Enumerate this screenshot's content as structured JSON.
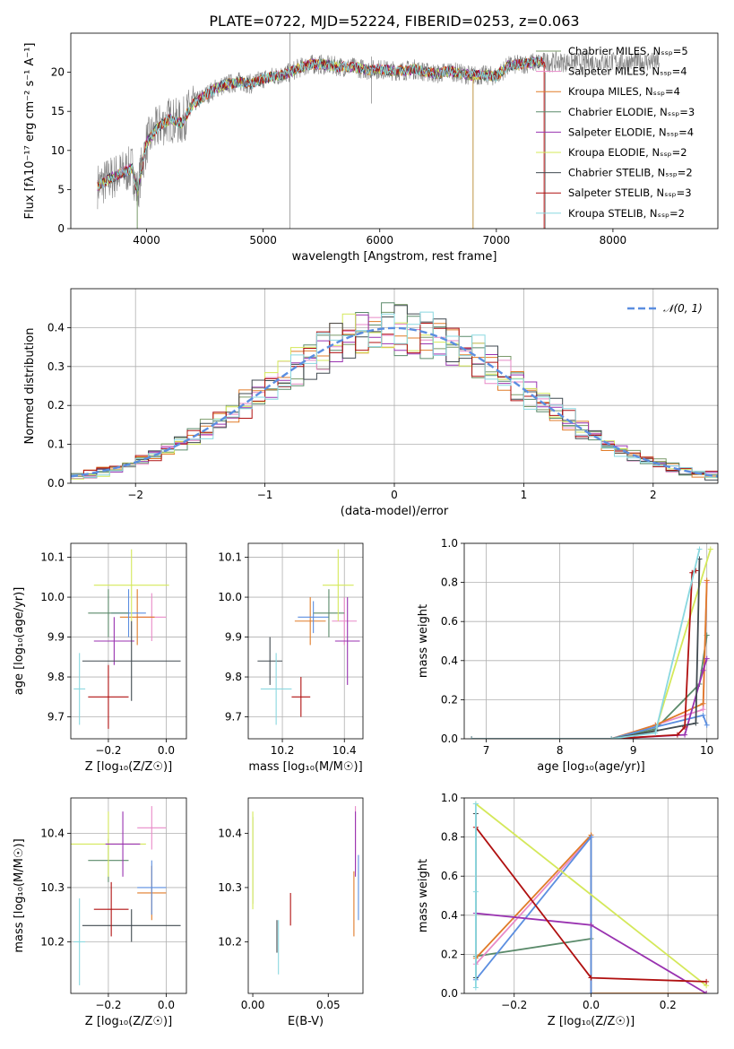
{
  "figure": {
    "title": "PLATE=0722, MJD=52224, FIBERID=0253, z=0.063"
  },
  "chart_data": [
    {
      "id": "spectrum",
      "type": "line",
      "xlabel": "wavelength [Angstrom, rest frame]",
      "ylabel": "Flux [fλ10⁻¹⁷ erg cm⁻² s⁻¹ A⁻¹]",
      "xlim": [
        3350,
        8900
      ],
      "ylim": [
        0,
        25
      ],
      "xticks": [
        4000,
        5000,
        6000,
        7000,
        8000
      ],
      "yticks": [
        0,
        5,
        10,
        15,
        20
      ],
      "grid": false,
      "legend_position": "top-right",
      "continuum": [
        [
          3580,
          5.5
        ],
        [
          3700,
          6.5
        ],
        [
          3800,
          7.2
        ],
        [
          3880,
          7.8
        ],
        [
          3920,
          4.5
        ],
        [
          3960,
          8
        ],
        [
          4000,
          11
        ],
        [
          4100,
          13
        ],
        [
          4200,
          14
        ],
        [
          4300,
          13.5
        ],
        [
          4400,
          16
        ],
        [
          4500,
          17
        ],
        [
          4600,
          18
        ],
        [
          4700,
          18.5
        ],
        [
          4800,
          18.8
        ],
        [
          4900,
          18.5
        ],
        [
          5000,
          19.2
        ],
        [
          5100,
          19.5
        ],
        [
          5200,
          19.8
        ],
        [
          5300,
          20.5
        ],
        [
          5400,
          21
        ],
        [
          5500,
          21
        ],
        [
          5600,
          20.8
        ],
        [
          5700,
          20.7
        ],
        [
          5800,
          20.6
        ],
        [
          5900,
          20.3
        ],
        [
          6000,
          20.4
        ],
        [
          6100,
          20.2
        ],
        [
          6200,
          20.2
        ],
        [
          6300,
          20.4
        ],
        [
          6400,
          20
        ],
        [
          6500,
          19.8
        ],
        [
          6600,
          20.2
        ],
        [
          6700,
          19.8
        ],
        [
          6800,
          19.6
        ],
        [
          6900,
          19.6
        ],
        [
          7000,
          19.5
        ],
        [
          7100,
          20.8
        ],
        [
          7200,
          21
        ],
        [
          7300,
          21.2
        ],
        [
          7400,
          21.3
        ]
      ],
      "observed_end": 8400,
      "series": [
        {
          "name": "Chabrier MILES, N_SSP=5",
          "color": "#7a9a6a"
        },
        {
          "name": "Salpeter MILES, N_SSP=4",
          "color": "#e88ac8"
        },
        {
          "name": "Kroupa MILES, N_SSP=4",
          "color": "#e07b28"
        },
        {
          "name": "Chabrier ELODIE, N_SSP=3",
          "color": "#5a8a6a"
        },
        {
          "name": "Salpeter ELODIE, N_SSP=4",
          "color": "#9932b0"
        },
        {
          "name": "Kroupa ELODIE, N_SSP=2",
          "color": "#d4e85a"
        },
        {
          "name": "Chabrier STELIB, N_SSP=2",
          "color": "#404a50"
        },
        {
          "name": "Salpeter STELIB, N_SSP=3",
          "color": "#b01010"
        },
        {
          "name": "Kroupa STELIB, N_SSP=2",
          "color": "#8ad8e0"
        }
      ]
    },
    {
      "id": "residuals",
      "type": "line",
      "xlabel": "(data-model)/error",
      "ylabel": "Normed distribution",
      "xlim": [
        -2.5,
        2.5
      ],
      "ylim": [
        0,
        0.5
      ],
      "xticks": [
        -2,
        -1,
        0,
        1,
        2
      ],
      "yticks": [
        0.0,
        0.1,
        0.2,
        0.3,
        0.4
      ],
      "grid": true,
      "legend_position": "top-right",
      "legend": "𝒩(0, 1)",
      "gaussian_color": "#5b8ee0",
      "bin_width": 0.1
    },
    {
      "id": "age-vs-Z",
      "type": "scatter",
      "xlabel": "Z [log₁₀(Z/Z☉)]",
      "ylabel": "age  [log₁₀(age/yr)]",
      "xlim": [
        -0.33,
        0.07
      ],
      "ylim": [
        9.645,
        10.135
      ],
      "xticks": [
        -0.2,
        0.0
      ],
      "yticks": [
        9.7,
        9.8,
        9.9,
        10.0,
        10.1
      ],
      "grid": true,
      "errorbars": [
        {
          "x": -0.05,
          "y": 9.95,
          "xerr": 0.05,
          "yerr": 0.06,
          "color": "#e88ac8"
        },
        {
          "x": -0.1,
          "y": 9.95,
          "xerr": 0.06,
          "yerr": 0.07,
          "color": "#e07b28"
        },
        {
          "x": -0.13,
          "y": 9.96,
          "xerr": 0.06,
          "yerr": 0.06,
          "color": "#5b8ee0"
        },
        {
          "x": -0.2,
          "y": 9.96,
          "xerr": 0.07,
          "yerr": 0.06,
          "color": "#5a8a6a"
        },
        {
          "x": -0.12,
          "y": 10.03,
          "xerr": 0.13,
          "yerr": 0.09,
          "color": "#d4e85a"
        },
        {
          "x": -0.18,
          "y": 9.89,
          "xerr": 0.07,
          "yerr": 0.06,
          "color": "#9932b0"
        },
        {
          "x": -0.12,
          "y": 9.84,
          "xerr": 0.17,
          "yerr": 0.1,
          "color": "#404a50"
        },
        {
          "x": -0.2,
          "y": 9.75,
          "xerr": 0.07,
          "yerr": 0.08,
          "color": "#b01010"
        },
        {
          "x": -0.3,
          "y": 9.77,
          "xerr": 0.02,
          "yerr": 0.09,
          "color": "#8ad8e0"
        }
      ]
    },
    {
      "id": "age-vs-mass",
      "type": "scatter",
      "xlabel": "mass [log₁₀(M/M☉)]",
      "ylabel": "",
      "xlim": [
        10.09,
        10.46
      ],
      "ylim": [
        9.645,
        10.135
      ],
      "xticks": [
        10.2,
        10.4
      ],
      "yticks": [
        9.7,
        9.8,
        9.9,
        10.0,
        10.1
      ],
      "grid": true,
      "errorbars": [
        {
          "x": 10.4,
          "y": 9.94,
          "xerr": 0.04,
          "yerr": 0.06,
          "color": "#e88ac8"
        },
        {
          "x": 10.29,
          "y": 9.94,
          "xerr": 0.05,
          "yerr": 0.06,
          "color": "#e07b28"
        },
        {
          "x": 10.3,
          "y": 9.95,
          "xerr": 0.05,
          "yerr": 0.04,
          "color": "#5b8ee0"
        },
        {
          "x": 10.35,
          "y": 9.96,
          "xerr": 0.05,
          "yerr": 0.06,
          "color": "#5a8a6a"
        },
        {
          "x": 10.38,
          "y": 10.03,
          "xerr": 0.05,
          "yerr": 0.09,
          "color": "#d4e85a"
        },
        {
          "x": 10.41,
          "y": 9.89,
          "xerr": 0.04,
          "yerr": 0.11,
          "color": "#9932b0"
        },
        {
          "x": 10.16,
          "y": 9.84,
          "xerr": 0.04,
          "yerr": 0.06,
          "color": "#404a50"
        },
        {
          "x": 10.26,
          "y": 9.75,
          "xerr": 0.03,
          "yerr": 0.05,
          "color": "#b01010"
        },
        {
          "x": 10.18,
          "y": 9.77,
          "xerr": 0.05,
          "yerr": 0.09,
          "color": "#8ad8e0"
        }
      ]
    },
    {
      "id": "weight-vs-age",
      "type": "line",
      "xlabel": "age  [log₁₀(age/yr)]",
      "ylabel": "mass weight",
      "xlim": [
        6.7,
        10.15
      ],
      "ylim": [
        0,
        1
      ],
      "xticks": [
        7,
        8,
        9,
        10
      ],
      "yticks": [
        0.0,
        0.2,
        0.4,
        0.6,
        0.8,
        1.0
      ],
      "grid": true,
      "series": [
        {
          "color": "#5a8a6a",
          "x": [
            6.8,
            8.7,
            9.3,
            9.9,
            10.0
          ],
          "y": [
            0,
            0,
            0.05,
            0.28,
            0.53
          ]
        },
        {
          "color": "#e88ac8",
          "x": [
            6.8,
            8.7,
            9.3,
            9.95,
            10.0
          ],
          "y": [
            0,
            0,
            0.07,
            0.15,
            0.8
          ]
        },
        {
          "color": "#e07b28",
          "x": [
            6.8,
            8.7,
            9.3,
            9.95,
            10.0
          ],
          "y": [
            0,
            0,
            0.07,
            0.18,
            0.81
          ]
        },
        {
          "color": "#5b8ee0",
          "x": [
            6.8,
            8.7,
            9.3,
            9.95,
            10.0
          ],
          "y": [
            0,
            0,
            0.06,
            0.12,
            0.07
          ]
        },
        {
          "color": "#9932b0",
          "x": [
            6.8,
            8.7,
            9.7,
            9.95,
            10.0
          ],
          "y": [
            0,
            0,
            0.02,
            0.35,
            0.41
          ]
        },
        {
          "color": "#d4e85a",
          "x": [
            6.8,
            8.7,
            9.3,
            10.05
          ],
          "y": [
            0,
            0,
            0.04,
            0.97
          ]
        },
        {
          "color": "#404a50",
          "x": [
            6.8,
            8.7,
            9.3,
            9.85,
            9.9
          ],
          "y": [
            0,
            0,
            0.04,
            0.08,
            0.92
          ]
        },
        {
          "color": "#b01010",
          "x": [
            6.8,
            8.7,
            9.6,
            9.7,
            9.8,
            9.85
          ],
          "y": [
            0,
            0,
            0.02,
            0.06,
            0.85,
            0.86
          ]
        },
        {
          "color": "#8ad8e0",
          "x": [
            6.8,
            8.7,
            9.3,
            9.9
          ],
          "y": [
            0,
            0,
            0.03,
            0.97
          ]
        }
      ]
    },
    {
      "id": "mass-vs-Z",
      "type": "scatter",
      "xlabel": "Z [log₁₀(Z/Z☉)]",
      "ylabel": "mass [log₁₀(M/M☉)]",
      "xlim": [
        -0.33,
        0.07
      ],
      "ylim": [
        10.105,
        10.465
      ],
      "xticks": [
        -0.2,
        0.0
      ],
      "yticks": [
        10.2,
        10.3,
        10.4
      ],
      "grid": true,
      "errorbars": [
        {
          "x": -0.05,
          "y": 10.41,
          "xerr": 0.05,
          "yerr": 0.04,
          "color": "#e88ac8"
        },
        {
          "x": -0.05,
          "y": 10.29,
          "xerr": 0.05,
          "yerr": 0.05,
          "color": "#e07b28"
        },
        {
          "x": -0.05,
          "y": 10.3,
          "xerr": 0.05,
          "yerr": 0.05,
          "color": "#5b8ee0"
        },
        {
          "x": -0.2,
          "y": 10.35,
          "xerr": 0.07,
          "yerr": 0.04,
          "color": "#5a8a6a"
        },
        {
          "x": -0.2,
          "y": 10.38,
          "xerr": 0.13,
          "yerr": 0.06,
          "color": "#d4e85a"
        },
        {
          "x": -0.15,
          "y": 10.38,
          "xerr": 0.06,
          "yerr": 0.06,
          "color": "#9932b0"
        },
        {
          "x": -0.12,
          "y": 10.23,
          "xerr": 0.17,
          "yerr": 0.03,
          "color": "#404a50"
        },
        {
          "x": -0.19,
          "y": 10.26,
          "xerr": 0.06,
          "yerr": 0.05,
          "color": "#b01010"
        },
        {
          "x": -0.3,
          "y": 10.2,
          "xerr": 0.02,
          "yerr": 0.08,
          "color": "#8ad8e0"
        }
      ]
    },
    {
      "id": "mass-vs-EBV",
      "type": "scatter",
      "xlabel": "E(B-V)",
      "ylabel": "",
      "xlim": [
        -0.003,
        0.073
      ],
      "ylim": [
        10.105,
        10.465
      ],
      "xticks": [
        0.0,
        0.05
      ],
      "yticks": [
        10.2,
        10.3,
        10.4
      ],
      "grid": false,
      "errorbars": [
        {
          "x": 0.068,
          "y": 10.39,
          "xerr": 0,
          "yerr": 0.06,
          "color": "#e88ac8"
        },
        {
          "x": 0.067,
          "y": 10.27,
          "xerr": 0,
          "yerr": 0.06,
          "color": "#e07b28"
        },
        {
          "x": 0.07,
          "y": 10.3,
          "xerr": 0,
          "yerr": 0.06,
          "color": "#5b8ee0"
        },
        {
          "x": 0.0,
          "y": 10.35,
          "xerr": 0,
          "yerr": 0.08,
          "color": "#5a8a6a"
        },
        {
          "x": 0.0,
          "y": 10.35,
          "xerr": 0,
          "yerr": 0.09,
          "color": "#d4e85a"
        },
        {
          "x": 0.068,
          "y": 10.38,
          "xerr": 0,
          "yerr": 0.06,
          "color": "#9932b0"
        },
        {
          "x": 0.016,
          "y": 10.21,
          "xerr": 0,
          "yerr": 0.03,
          "color": "#404a50"
        },
        {
          "x": 0.025,
          "y": 10.26,
          "xerr": 0,
          "yerr": 0.03,
          "color": "#b01010"
        },
        {
          "x": 0.017,
          "y": 10.19,
          "xerr": 0,
          "yerr": 0.05,
          "color": "#8ad8e0"
        }
      ]
    },
    {
      "id": "weight-vs-Z",
      "type": "line",
      "xlabel": "Z [log₁₀(Z/Z☉)]",
      "ylabel": "mass weight",
      "xlim": [
        -0.33,
        0.33
      ],
      "ylim": [
        0,
        1
      ],
      "xticks": [
        -0.2,
        0.0,
        0.2
      ],
      "yticks": [
        0.0,
        0.2,
        0.4,
        0.6,
        0.8,
        1.0
      ],
      "grid": true,
      "series": [
        {
          "color": "#5a8a6a",
          "x": [
            -0.3,
            0.0
          ],
          "y": [
            0.19,
            0.28
          ]
        },
        {
          "color": "#e88ac8",
          "x": [
            -0.3,
            0.0
          ],
          "y": [
            0.15,
            0.8
          ]
        },
        {
          "color": "#e07b28",
          "x": [
            -0.3,
            0.0,
            0.0,
            0.3
          ],
          "y": [
            0.18,
            0.81,
            0.0,
            0.0
          ]
        },
        {
          "color": "#5b8ee0",
          "x": [
            -0.3,
            0.0,
            0.0
          ],
          "y": [
            0.07,
            0.8,
            0.0
          ]
        },
        {
          "color": "#9932b0",
          "x": [
            -0.3,
            0.0,
            0.3
          ],
          "y": [
            0.41,
            0.35,
            0.0
          ]
        },
        {
          "color": "#d4e85a",
          "x": [
            -0.3,
            0.3
          ],
          "y": [
            0.97,
            0.04
          ]
        },
        {
          "color": "#404a50",
          "x": [
            -0.3,
            -0.3
          ],
          "y": [
            0.08,
            0.92
          ]
        },
        {
          "color": "#b01010",
          "x": [
            -0.3,
            0.0,
            0.3
          ],
          "y": [
            0.85,
            0.08,
            0.06
          ]
        },
        {
          "color": "#8ad8e0",
          "x": [
            -0.3,
            -0.3,
            -0.3
          ],
          "y": [
            0.03,
            0.52,
            0.97
          ]
        }
      ]
    }
  ]
}
